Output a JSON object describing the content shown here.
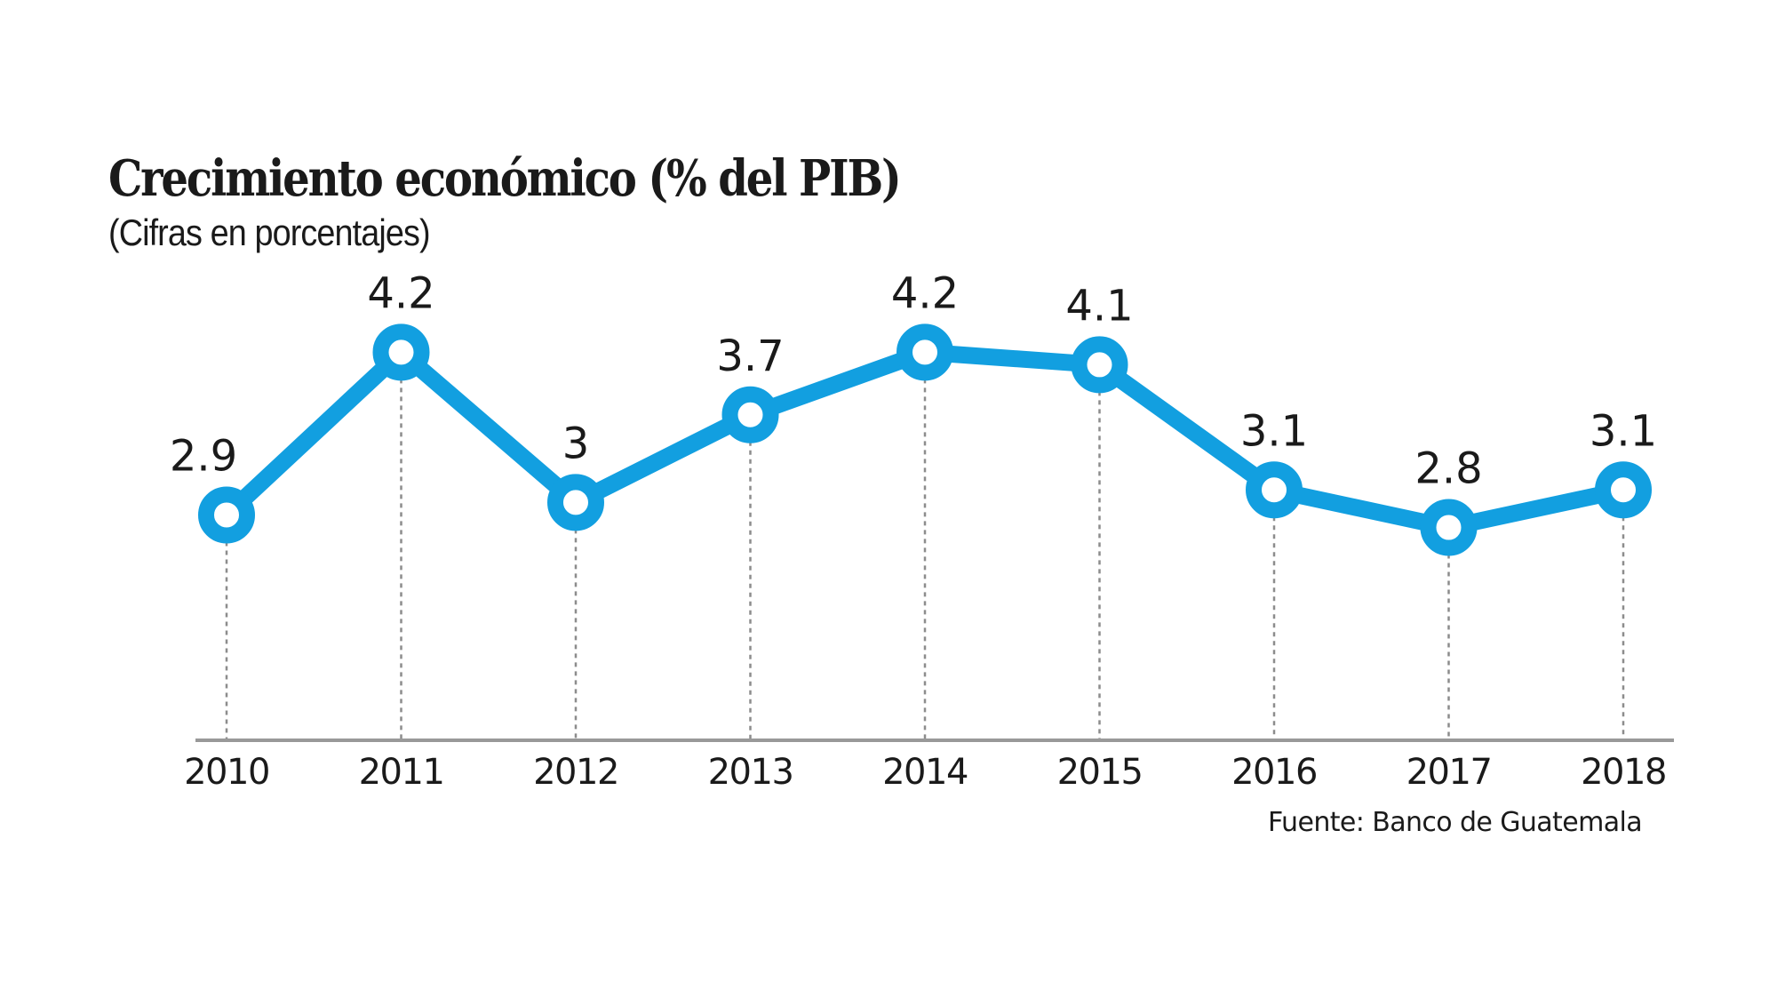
{
  "chart_data": {
    "type": "line",
    "title": "Crecimiento económico (% del PIB)",
    "subtitle": "(Cifras en porcentajes)",
    "source": "Fuente: Banco de Guatemala",
    "xlabel": "",
    "ylabel": "",
    "categories": [
      "2010",
      "2011",
      "2012",
      "2013",
      "2014",
      "2015",
      "2016",
      "2017",
      "2018"
    ],
    "series": [
      {
        "name": "Crecimiento económico",
        "values": [
          2.9,
          4.2,
          3.0,
          3.7,
          4.2,
          4.1,
          3.1,
          2.8,
          3.1
        ],
        "data_labels": [
          "2.9",
          "4.2",
          "3",
          "3.7",
          "4.2",
          "4.1",
          "3.1",
          "2.8",
          "3.1"
        ],
        "color": "#129FE0"
      }
    ],
    "ylim": [
      1.1,
      4.6
    ],
    "grid": false,
    "y_axis_visible": false,
    "legend": "none",
    "colors": {
      "line": "#129FE0",
      "marker_fill": "#ffffff",
      "drop_line": "#8c8c8c",
      "axis": "#999999",
      "text": "#1a1a1a"
    }
  }
}
